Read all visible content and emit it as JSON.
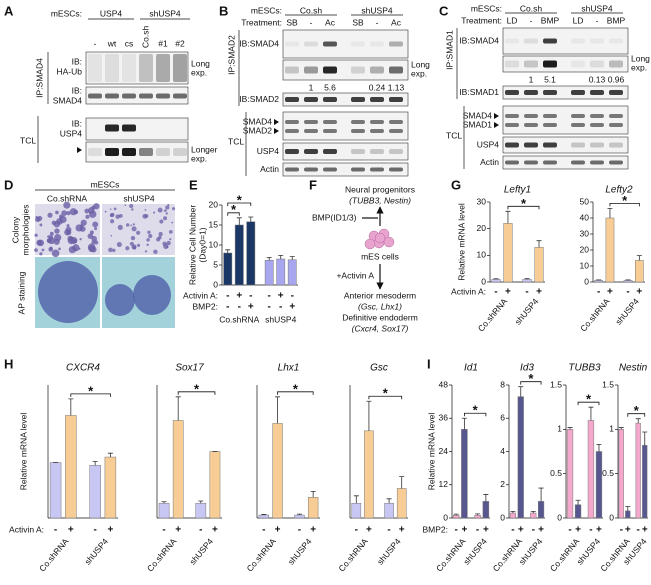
{
  "panels": {
    "A": {
      "label": "A",
      "cells": "mESCs:",
      "groups": [
        "USP4",
        "shUSP4"
      ],
      "lanes": [
        "-",
        "wt",
        "cs",
        "Co.sh",
        "#1",
        "#2"
      ],
      "ip": "IP:SMAD4",
      "blots": [
        [
          "IB:",
          "HA-Ub"
        ],
        [
          "IB:",
          "SMAD4"
        ],
        [
          "IB:",
          "USP4"
        ]
      ],
      "notes": [
        "Long",
        "exp.",
        "Longer",
        "exp."
      ],
      "tcl": "TCL"
    },
    "B": {
      "label": "B",
      "cells": "mESCs:",
      "groups": [
        "Co.sh",
        "shUSP4"
      ],
      "treatment": "Treatment:",
      "lanes": [
        "SB",
        "-",
        "Ac",
        "SB",
        "-",
        "Ac"
      ],
      "ip": "IP:SMAD2",
      "blots": [
        "IB:SMAD4",
        "IB:SMAD2"
      ],
      "notes": [
        "Long",
        "exp."
      ],
      "quantification": [
        1,
        5.6,
        0.24,
        1.13
      ],
      "tcl": "TCL",
      "tcl_blots": [
        "SMAD4",
        "SMAD2",
        "USP4",
        "Actin"
      ]
    },
    "C": {
      "label": "C",
      "cells": "mESCs:",
      "groups": [
        "Co.sh",
        "shUSP4"
      ],
      "treatment": "Treatment:",
      "lanes": [
        "LD",
        "-",
        "BMP",
        "LD",
        "-",
        "BMP"
      ],
      "ip": "IP:SMAD1",
      "blots": [
        "IB:SMAD4",
        "IB:SMAD1"
      ],
      "notes": [
        "Long",
        "exp."
      ],
      "quantification": [
        1,
        5.1,
        0.13,
        0.96
      ],
      "tcl": "TCL",
      "tcl_blots": [
        "SMAD4",
        "SMAD1",
        "USP4",
        "Actin"
      ]
    },
    "D": {
      "label": "D",
      "cells": "mESCs",
      "groups": [
        "Co.shRNA",
        "shUSP4"
      ],
      "rows": [
        [
          "Colony",
          "morphologies"
        ],
        [
          "AP staining"
        ]
      ]
    },
    "F": {
      "label": "F",
      "top": [
        "Neural progenitors",
        "(TUBB3, Nestin)"
      ],
      "signal": "BMP(ID1/3)",
      "center": "mES cells",
      "treatment": "+Activin A",
      "bottom": [
        "Anterior mesoderm",
        "(Gsc, Lhx1)",
        "Definitive endoderm",
        "(Cxcr4, Sox17)"
      ]
    }
  },
  "chart_data": [
    {
      "type": "bar",
      "panel_label": "E",
      "y_label": [
        "Relative Cell Number",
        "(Day0=1)"
      ],
      "ylim": [
        0,
        20
      ],
      "yticks": [
        0,
        5,
        10,
        15,
        20
      ],
      "values": [
        8,
        15,
        15.8,
        6.2,
        6.5,
        6.3
      ],
      "errors": [
        0.8,
        1.8,
        1.2,
        0.7,
        0.9,
        0.8
      ],
      "colors": [
        "#1b3766",
        "#1b3766",
        "#1b3766",
        "#a8a6ee",
        "#a8a6ee",
        "#a8a6ee"
      ],
      "conditions": [
        {
          "name": "Activin A:",
          "levels": [
            "-",
            "+",
            "-",
            "-",
            "+",
            "-"
          ]
        },
        {
          "name": "BMP2:",
          "levels": [
            "-",
            "-",
            "+",
            "-",
            "-",
            "+"
          ]
        }
      ],
      "groups": [
        "Co.shRNA",
        "shUSP4"
      ],
      "annotations": [
        "*",
        "*"
      ]
    },
    {
      "type": "bar",
      "panel_label": "G",
      "title": "Lefty1",
      "y_label": "Relative mRNA level",
      "ylim": [
        0,
        30
      ],
      "yticks": [
        0,
        10,
        20,
        30
      ],
      "values": [
        1,
        22,
        1,
        13
      ],
      "errors": [
        0.2,
        4.5,
        0.3,
        2.5
      ],
      "colors": [
        "#c8c6f2",
        "#f7cd95",
        "#c8c6f2",
        "#f7cd95"
      ],
      "conditions": [
        {
          "name": "Activin A:",
          "levels": [
            "-",
            "+",
            "-",
            "+"
          ]
        }
      ],
      "groups": [
        "Co.shRNA",
        "shUSP4"
      ],
      "annotations": [
        "*"
      ]
    },
    {
      "type": "bar",
      "title": "Lefty2",
      "ylim": [
        0,
        50
      ],
      "yticks": [
        0,
        10,
        20,
        30,
        40,
        50
      ],
      "values": [
        1,
        40,
        1,
        13.5
      ],
      "errors": [
        0.3,
        6,
        0.3,
        3
      ],
      "colors": [
        "#c8c6f2",
        "#f7cd95",
        "#c8c6f2",
        "#f7cd95"
      ],
      "conditions": [
        {
          "levels": [
            "-",
            "+",
            "-",
            "+"
          ]
        }
      ],
      "groups": [
        "Co.shRNA",
        "shUSP4"
      ],
      "annotations": [
        "*"
      ]
    },
    {
      "type": "bar",
      "panel_label": "H",
      "title": "CXCR4",
      "y_label": "Relative mRNA level",
      "ylim": [
        0,
        2.4
      ],
      "values": [
        1,
        1.85,
        0.95,
        1.1
      ],
      "errors": [
        0,
        0.3,
        0.07,
        0.07
      ],
      "colors": [
        "#c8c6f2",
        "#f7cd95",
        "#c8c6f2",
        "#f7cd95"
      ],
      "conditions": [
        {
          "name": "Activin A:",
          "levels": [
            "-",
            "+",
            "-",
            "+"
          ]
        }
      ],
      "groups": [
        "Co.shRNA",
        "shUSP4"
      ],
      "annotations": [
        "*"
      ]
    },
    {
      "type": "bar",
      "title": "Sox17",
      "ylim": [
        0,
        9
      ],
      "values": [
        1,
        6.6,
        1,
        4.5
      ],
      "errors": [
        0.1,
        1.6,
        0.15,
        0
      ],
      "colors": [
        "#c8c6f2",
        "#f7cd95",
        "#c8c6f2",
        "#f7cd95"
      ],
      "conditions": [
        {
          "levels": [
            "-",
            "+",
            "-",
            "+"
          ]
        }
      ],
      "groups": [
        "Co.shRNA",
        "shUSP4"
      ],
      "annotations": [
        "*"
      ]
    },
    {
      "type": "bar",
      "title": "Lhx1",
      "ylim": [
        0,
        45
      ],
      "values": [
        1,
        32,
        1,
        7
      ],
      "errors": [
        0.2,
        9,
        0.3,
        2
      ],
      "colors": [
        "#c8c6f2",
        "#f7cd95",
        "#c8c6f2",
        "#f7cd95"
      ],
      "conditions": [
        {
          "levels": [
            "-",
            "+",
            "-",
            "+"
          ]
        }
      ],
      "groups": [
        "Co.shRNA",
        "shUSP4"
      ],
      "annotations": [
        "*"
      ]
    },
    {
      "type": "bar",
      "title": "Gsc",
      "ylim": [
        0,
        9
      ],
      "values": [
        1,
        5.9,
        1,
        2
      ],
      "errors": [
        0.5,
        2,
        0.3,
        0.8
      ],
      "colors": [
        "#c8c6f2",
        "#f7cd95",
        "#c8c6f2",
        "#f7cd95"
      ],
      "conditions": [
        {
          "levels": [
            "-",
            "+",
            "-",
            "+"
          ]
        }
      ],
      "groups": [
        "Co.shRNA",
        "shUSP4"
      ],
      "annotations": [
        "*"
      ]
    },
    {
      "type": "bar",
      "panel_label": "I",
      "title": "Id1",
      "y_label": "Relative mRNA level",
      "ylim": [
        0,
        48
      ],
      "yticks": [
        0,
        12,
        24,
        36,
        48
      ],
      "values": [
        1,
        32,
        1,
        6
      ],
      "errors": [
        0.4,
        4,
        0.5,
        2.5
      ],
      "colors": [
        "#f4a8cc",
        "#57568f",
        "#f4a8cc",
        "#57568f"
      ],
      "conditions": [
        {
          "name": "BMP2:",
          "levels": [
            "-",
            "+",
            "-",
            "+"
          ]
        }
      ],
      "groups": [
        "Co.shRNA",
        "shUSP4"
      ],
      "annotations": [
        "*"
      ]
    },
    {
      "type": "bar",
      "title": "Id3",
      "ylim": [
        0,
        8
      ],
      "yticks": [
        0,
        2,
        4,
        6,
        8
      ],
      "values": [
        0.3,
        7.3,
        0.3,
        1
      ],
      "errors": [
        0.1,
        0.6,
        0.1,
        0.8
      ],
      "colors": [
        "#f4a8cc",
        "#57568f",
        "#f4a8cc",
        "#57568f"
      ],
      "conditions": [
        {
          "levels": [
            "-",
            "+",
            "-",
            "+"
          ]
        }
      ],
      "groups": [
        "Co.shRNA",
        "shUSP4"
      ],
      "annotations": [
        "*"
      ]
    },
    {
      "type": "bar",
      "title": "TUBB3",
      "ylim": [
        0,
        1.5
      ],
      "yticks": [
        0,
        0.5,
        1,
        1.5
      ],
      "values": [
        1,
        0.15,
        1.1,
        0.75
      ],
      "errors": [
        0.02,
        0.05,
        0.15,
        0.08
      ],
      "colors": [
        "#f4a8cc",
        "#57568f",
        "#f4a8cc",
        "#57568f"
      ],
      "conditions": [
        {
          "levels": [
            "-",
            "+",
            "-",
            "+"
          ]
        }
      ],
      "groups": [
        "Co.shRNA",
        "shUSP4"
      ],
      "annotations": [
        "*"
      ]
    },
    {
      "type": "bar",
      "title": "Nestin",
      "ylim": [
        0,
        1.5
      ],
      "yticks": [
        0,
        0.5,
        1,
        1.5
      ],
      "values": [
        1,
        0.08,
        1.07,
        0.82
      ],
      "errors": [
        0.02,
        0.05,
        0.05,
        0.15
      ],
      "colors": [
        "#f4a8cc",
        "#57568f",
        "#f4a8cc",
        "#57568f"
      ],
      "conditions": [
        {
          "levels": [
            "-",
            "+",
            "-",
            "+"
          ]
        }
      ],
      "groups": [
        "Co.shRNA",
        "shUSP4"
      ],
      "annotations": [
        "*"
      ]
    }
  ]
}
